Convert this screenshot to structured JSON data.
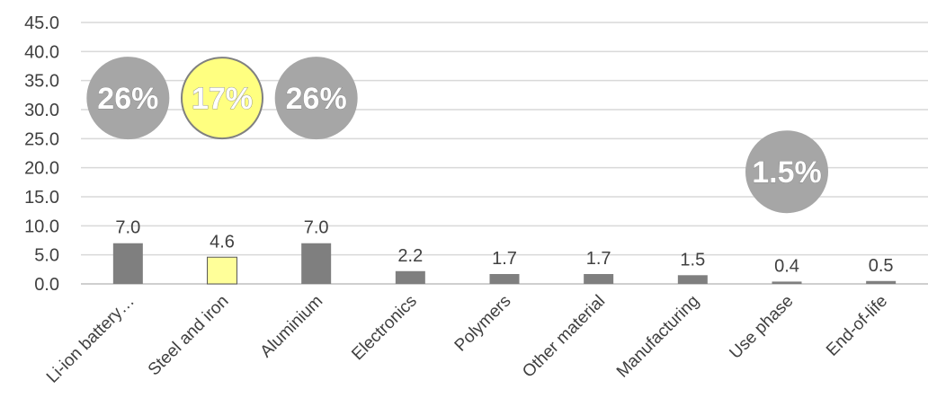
{
  "chart_data": {
    "type": "bar",
    "title": "",
    "xlabel": "",
    "ylabel": "",
    "ylim": [
      0,
      45
    ],
    "y_ticks": [
      "0.0",
      "5.0",
      "10.0",
      "15.0",
      "20.0",
      "25.0",
      "30.0",
      "35.0",
      "40.0",
      "45.0"
    ],
    "grid": true,
    "categories": [
      "Li-ion battery…",
      "Steel and iron",
      "Aluminium",
      "Electronics",
      "Polymers",
      "Other material",
      "Manufacturing",
      "Use phase",
      "End-of-life"
    ],
    "values": [
      7.0,
      4.6,
      7.0,
      2.2,
      1.7,
      1.7,
      1.5,
      0.4,
      0.5
    ],
    "value_labels": [
      "7.0",
      "4.6",
      "7.0",
      "2.2",
      "1.7",
      "1.7",
      "1.5",
      "0.4",
      "0.5"
    ],
    "bar_colors": [
      "#7f7f7f",
      "#ffff99",
      "#7f7f7f",
      "#7f7f7f",
      "#7f7f7f",
      "#7f7f7f",
      "#7f7f7f",
      "#7f7f7f",
      "#7f7f7f"
    ],
    "annotations": [
      {
        "text": "26%",
        "category": "Li-ion battery…",
        "y": 32.0,
        "fill": "#a6a6a6",
        "stroke": "#a6a6a6"
      },
      {
        "text": "17%",
        "category": "Steel and iron",
        "y": 32.0,
        "fill": "#ffff80",
        "stroke": "#808080"
      },
      {
        "text": "26%",
        "category": "Aluminium",
        "y": 32.0,
        "fill": "#a6a6a6",
        "stroke": "#a6a6a6"
      },
      {
        "text": "1.5%",
        "category": "Use phase",
        "y": 19.3,
        "fill": "#a6a6a6",
        "stroke": "#a6a6a6"
      }
    ]
  }
}
